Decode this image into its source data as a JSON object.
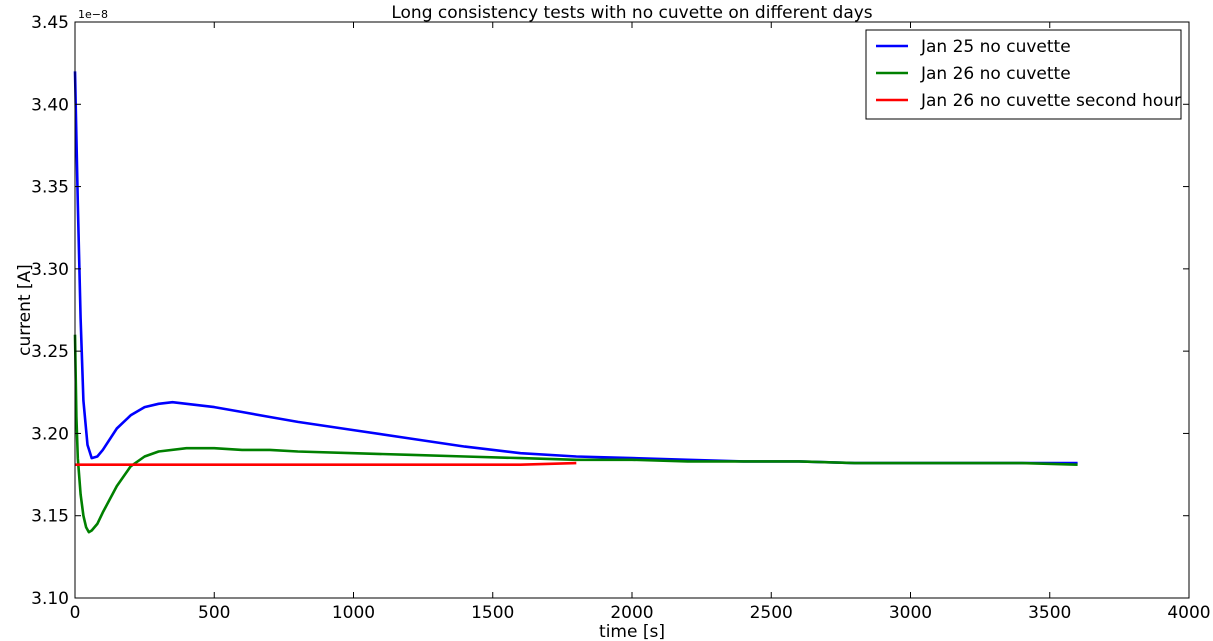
{
  "chart_data": {
    "type": "line",
    "title": "Long consistency tests with no cuvette on different days",
    "xlabel": "time [s]",
    "ylabel": "current [A]",
    "y_offset_label": "1e−8",
    "xlim": [
      0,
      4000
    ],
    "ylim": [
      3.1,
      3.45
    ],
    "x_ticks": [
      "0",
      "500",
      "1000",
      "1500",
      "2000",
      "2500",
      "3000",
      "3500",
      "4000"
    ],
    "y_ticks": [
      "3.10",
      "3.15",
      "3.20",
      "3.25",
      "3.30",
      "3.35",
      "3.40",
      "3.45"
    ],
    "grid": false,
    "legend_position": "top-right",
    "series": [
      {
        "name": "Jan 25 no cuvette",
        "color": "#0000ff",
        "x": [
          0,
          10,
          20,
          30,
          45,
          60,
          80,
          100,
          150,
          200,
          250,
          300,
          350,
          400,
          500,
          600,
          700,
          800,
          1000,
          1200,
          1400,
          1600,
          1800,
          2000,
          2200,
          2400,
          2600,
          2800,
          3000,
          3200,
          3400,
          3600
        ],
        "y": [
          3.42,
          3.34,
          3.27,
          3.22,
          3.193,
          3.185,
          3.186,
          3.19,
          3.203,
          3.211,
          3.216,
          3.218,
          3.219,
          3.218,
          3.216,
          3.213,
          3.21,
          3.207,
          3.202,
          3.197,
          3.192,
          3.188,
          3.186,
          3.185,
          3.184,
          3.183,
          3.183,
          3.182,
          3.182,
          3.182,
          3.182,
          3.182
        ]
      },
      {
        "name": "Jan 26 no cuvette",
        "color": "#008000",
        "x": [
          0,
          5,
          10,
          20,
          30,
          40,
          50,
          60,
          80,
          100,
          150,
          200,
          250,
          300,
          400,
          500,
          600,
          700,
          800,
          1000,
          1200,
          1400,
          1600,
          1800,
          2000,
          2200,
          2400,
          2600,
          2800,
          3000,
          3200,
          3400,
          3600
        ],
        "y": [
          3.26,
          3.21,
          3.185,
          3.163,
          3.15,
          3.143,
          3.14,
          3.141,
          3.145,
          3.152,
          3.168,
          3.18,
          3.186,
          3.189,
          3.191,
          3.191,
          3.19,
          3.19,
          3.189,
          3.188,
          3.187,
          3.186,
          3.185,
          3.184,
          3.184,
          3.183,
          3.183,
          3.183,
          3.182,
          3.182,
          3.182,
          3.182,
          3.181
        ]
      },
      {
        "name": "Jan 26 no cuvette second hour",
        "color": "#ff0000",
        "x": [
          0,
          200,
          400,
          600,
          800,
          1000,
          1200,
          1400,
          1600,
          1800
        ],
        "y": [
          3.181,
          3.181,
          3.181,
          3.181,
          3.181,
          3.181,
          3.181,
          3.181,
          3.181,
          3.182
        ]
      }
    ]
  }
}
